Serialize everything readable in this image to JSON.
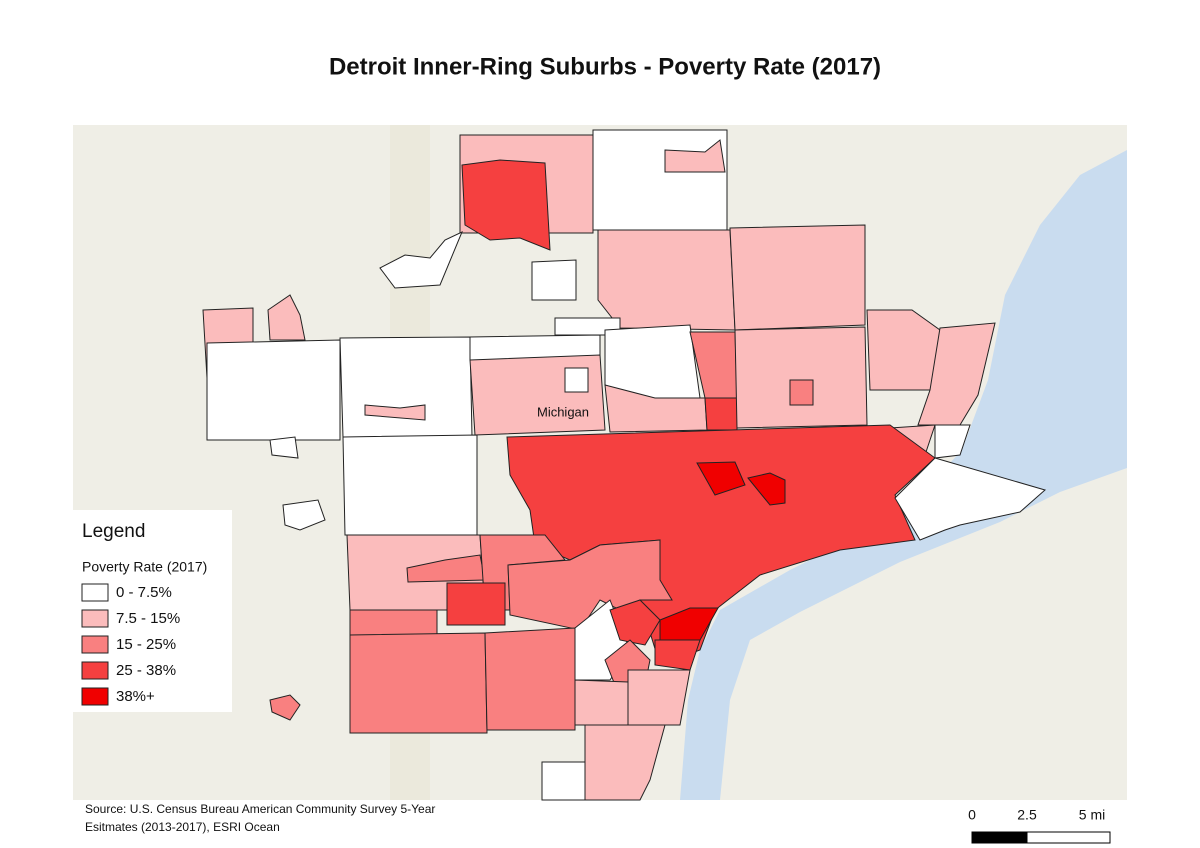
{
  "title": "Detroit Inner-Ring Suburbs - Poverty Rate (2017)",
  "map": {
    "labels": [
      "Michigan"
    ]
  },
  "legend": {
    "title": "Legend",
    "subtitle": "Poverty Rate (2017)",
    "classes": [
      {
        "label": "0 - 7.5%",
        "color": "#ffffff"
      },
      {
        "label": "7.5 - 15%",
        "color": "#fbbcbc"
      },
      {
        "label": "15 - 25%",
        "color": "#f98080"
      },
      {
        "label": "25 - 38%",
        "color": "#f54040"
      },
      {
        "label": "38%+",
        "color": "#f00000"
      }
    ]
  },
  "source": [
    "Source: U.S. Census Bureau American Community Survey 5-Year",
    "Esitmates (2013-2017), ESRI Ocean"
  ],
  "scale_bar": [
    "0",
    "2.5",
    "5 mi"
  ]
}
